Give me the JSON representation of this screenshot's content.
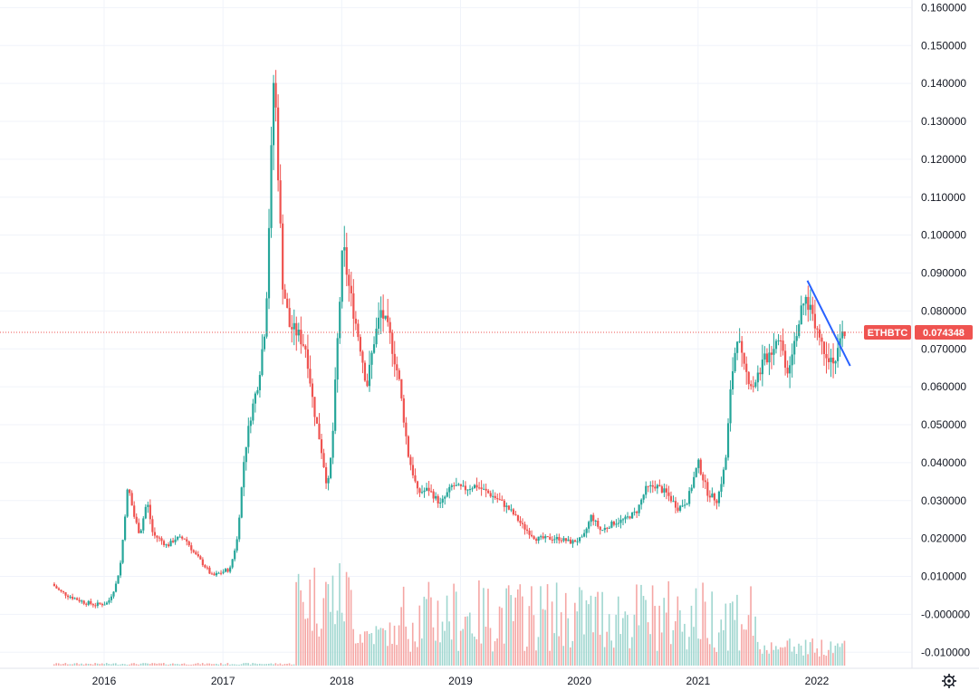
{
  "symbol_tag": "ETHBTC",
  "last_price_tag": "0.074348",
  "settings_icon": "gear-icon",
  "colors": {
    "up": "#26a69a",
    "down": "#ef5350",
    "trendline": "#2962ff",
    "grid": "#f0f3fa",
    "tag_bg": "#ef5350",
    "price_line": "#ef5350",
    "vol_up": "#9fd6cf",
    "vol_down": "#f5a6a4"
  },
  "chart_data": {
    "type": "candlestick",
    "ylim": [
      -0.014,
      0.162
    ],
    "y_ticks": [
      "0.160000",
      "0.150000",
      "0.140000",
      "0.130000",
      "0.120000",
      "0.110000",
      "0.100000",
      "0.090000",
      "0.080000",
      "0.070000",
      "0.060000",
      "0.050000",
      "0.040000",
      "0.030000",
      "0.020000",
      "0.010000",
      "-0.000000",
      "-0.010000"
    ],
    "y_tick_values": [
      0.16,
      0.15,
      0.14,
      0.13,
      0.12,
      0.11,
      0.1,
      0.09,
      0.08,
      0.07,
      0.06,
      0.05,
      0.04,
      0.03,
      0.02,
      0.01,
      0.0,
      -0.01
    ],
    "x_ticks": [
      "2016",
      "2017",
      "2018",
      "2019",
      "2020",
      "2021",
      "2022"
    ],
    "x_tick_values": [
      2016.0,
      2017.0,
      2018.0,
      2019.0,
      2020.0,
      2021.0,
      2022.0
    ],
    "x_range": [
      2015.5,
      2022.3
    ],
    "last_price": 0.074348,
    "series": [
      {
        "x": 2015.58,
        "y": 0.008
      },
      {
        "x": 2015.65,
        "y": 0.006
      },
      {
        "x": 2015.75,
        "y": 0.0045
      },
      {
        "x": 2015.85,
        "y": 0.0032
      },
      {
        "x": 2015.95,
        "y": 0.0025
      },
      {
        "x": 2016.05,
        "y": 0.003
      },
      {
        "x": 2016.12,
        "y": 0.008
      },
      {
        "x": 2016.16,
        "y": 0.014
      },
      {
        "x": 2016.2,
        "y": 0.028
      },
      {
        "x": 2016.22,
        "y": 0.034
      },
      {
        "x": 2016.27,
        "y": 0.026
      },
      {
        "x": 2016.32,
        "y": 0.021
      },
      {
        "x": 2016.38,
        "y": 0.03
      },
      {
        "x": 2016.43,
        "y": 0.021
      },
      {
        "x": 2016.48,
        "y": 0.02
      },
      {
        "x": 2016.55,
        "y": 0.018
      },
      {
        "x": 2016.62,
        "y": 0.02
      },
      {
        "x": 2016.7,
        "y": 0.02
      },
      {
        "x": 2016.78,
        "y": 0.016
      },
      {
        "x": 2016.86,
        "y": 0.013
      },
      {
        "x": 2016.93,
        "y": 0.01
      },
      {
        "x": 2017.0,
        "y": 0.011
      },
      {
        "x": 2017.08,
        "y": 0.012
      },
      {
        "x": 2017.14,
        "y": 0.02
      },
      {
        "x": 2017.2,
        "y": 0.042
      },
      {
        "x": 2017.25,
        "y": 0.052
      },
      {
        "x": 2017.32,
        "y": 0.062
      },
      {
        "x": 2017.38,
        "y": 0.078
      },
      {
        "x": 2017.42,
        "y": 0.115
      },
      {
        "x": 2017.45,
        "y": 0.145
      },
      {
        "x": 2017.48,
        "y": 0.12
      },
      {
        "x": 2017.52,
        "y": 0.088
      },
      {
        "x": 2017.58,
        "y": 0.076
      },
      {
        "x": 2017.65,
        "y": 0.074
      },
      {
        "x": 2017.72,
        "y": 0.07
      },
      {
        "x": 2017.78,
        "y": 0.055
      },
      {
        "x": 2017.84,
        "y": 0.045
      },
      {
        "x": 2017.9,
        "y": 0.033
      },
      {
        "x": 2017.94,
        "y": 0.045
      },
      {
        "x": 2017.98,
        "y": 0.07
      },
      {
        "x": 2018.03,
        "y": 0.098
      },
      {
        "x": 2018.07,
        "y": 0.088
      },
      {
        "x": 2018.13,
        "y": 0.078
      },
      {
        "x": 2018.18,
        "y": 0.07
      },
      {
        "x": 2018.23,
        "y": 0.06
      },
      {
        "x": 2018.29,
        "y": 0.072
      },
      {
        "x": 2018.35,
        "y": 0.08
      },
      {
        "x": 2018.42,
        "y": 0.074
      },
      {
        "x": 2018.5,
        "y": 0.062
      },
      {
        "x": 2018.58,
        "y": 0.042
      },
      {
        "x": 2018.66,
        "y": 0.032
      },
      {
        "x": 2018.75,
        "y": 0.033
      },
      {
        "x": 2018.85,
        "y": 0.029
      },
      {
        "x": 2018.95,
        "y": 0.034
      },
      {
        "x": 2019.05,
        "y": 0.033
      },
      {
        "x": 2019.15,
        "y": 0.034
      },
      {
        "x": 2019.25,
        "y": 0.032
      },
      {
        "x": 2019.35,
        "y": 0.03
      },
      {
        "x": 2019.45,
        "y": 0.027
      },
      {
        "x": 2019.55,
        "y": 0.023
      },
      {
        "x": 2019.65,
        "y": 0.02
      },
      {
        "x": 2019.75,
        "y": 0.02
      },
      {
        "x": 2019.85,
        "y": 0.02
      },
      {
        "x": 2019.95,
        "y": 0.019
      },
      {
        "x": 2020.05,
        "y": 0.02
      },
      {
        "x": 2020.12,
        "y": 0.026
      },
      {
        "x": 2020.2,
        "y": 0.022
      },
      {
        "x": 2020.3,
        "y": 0.024
      },
      {
        "x": 2020.4,
        "y": 0.025
      },
      {
        "x": 2020.5,
        "y": 0.027
      },
      {
        "x": 2020.58,
        "y": 0.033
      },
      {
        "x": 2020.66,
        "y": 0.034
      },
      {
        "x": 2020.75,
        "y": 0.032
      },
      {
        "x": 2020.85,
        "y": 0.028
      },
      {
        "x": 2020.93,
        "y": 0.03
      },
      {
        "x": 2021.02,
        "y": 0.04
      },
      {
        "x": 2021.1,
        "y": 0.032
      },
      {
        "x": 2021.18,
        "y": 0.03
      },
      {
        "x": 2021.25,
        "y": 0.04
      },
      {
        "x": 2021.3,
        "y": 0.062
      },
      {
        "x": 2021.35,
        "y": 0.074
      },
      {
        "x": 2021.4,
        "y": 0.065
      },
      {
        "x": 2021.48,
        "y": 0.06
      },
      {
        "x": 2021.56,
        "y": 0.066
      },
      {
        "x": 2021.64,
        "y": 0.07
      },
      {
        "x": 2021.7,
        "y": 0.074
      },
      {
        "x": 2021.77,
        "y": 0.064
      },
      {
        "x": 2021.84,
        "y": 0.074
      },
      {
        "x": 2021.92,
        "y": 0.083
      },
      {
        "x": 2021.98,
        "y": 0.08
      },
      {
        "x": 2022.05,
        "y": 0.072
      },
      {
        "x": 2022.12,
        "y": 0.068
      },
      {
        "x": 2022.18,
        "y": 0.067
      },
      {
        "x": 2022.24,
        "y": 0.0743
      }
    ],
    "trendline": {
      "x": [
        2021.92,
        2022.28
      ],
      "y": [
        0.088,
        0.0655
      ]
    }
  }
}
